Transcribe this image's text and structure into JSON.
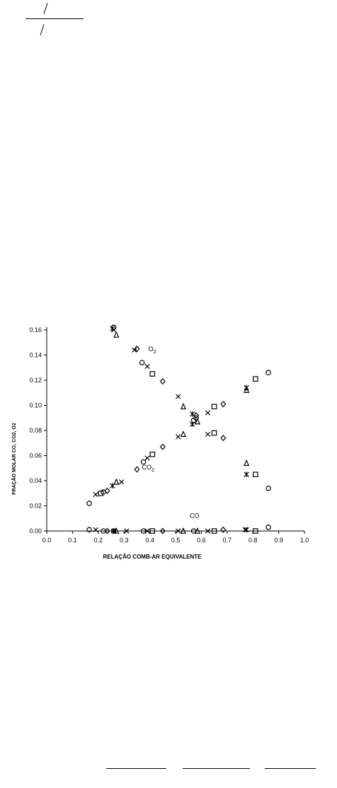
{
  "chart_data": {
    "type": "scatter",
    "xlabel": "RELAÇÃO COMB-AR EQUIVALENTE",
    "ylabel": "FRAÇÃO MOLAR CO, CO2, O2",
    "xlim": [
      0.0,
      1.0
    ],
    "ylim": [
      0.0,
      0.16
    ],
    "x_ticks": [
      "0.0",
      "0.1",
      "0.2",
      "0.3",
      "0.4",
      "0.5",
      "0.6",
      "0.7",
      "0.8",
      "0.9",
      "1.0"
    ],
    "y_ticks": [
      "0.00",
      "0.02",
      "0.04",
      "0.06",
      "0.08",
      "0.10",
      "0.12",
      "0.14",
      "0.16"
    ],
    "annotations": [
      {
        "text": "O",
        "sub": "2",
        "x": 0.395,
        "y": 0.143
      },
      {
        "text": "CO",
        "sub": "2",
        "x": 0.37,
        "y": 0.049
      },
      {
        "text": "CO",
        "sub": "",
        "x": 0.555,
        "y": 0.0105
      }
    ],
    "series": [
      {
        "marker": "circle",
        "points": [
          [
            0.165,
            0.022
          ],
          [
            0.22,
            0.031
          ],
          [
            0.26,
            0.162
          ],
          [
            0.37,
            0.134
          ],
          [
            0.375,
            0.055
          ],
          [
            0.57,
            0.088
          ],
          [
            0.58,
            0.09
          ],
          [
            0.86,
            0.126
          ],
          [
            0.165,
            0.001
          ],
          [
            0.22,
            0.0
          ],
          [
            0.26,
            0.0
          ],
          [
            0.375,
            0.0
          ],
          [
            0.57,
            0.0
          ],
          [
            0.86,
            0.003
          ],
          [
            0.86,
            0.034
          ]
        ]
      },
      {
        "marker": "x",
        "points": [
          [
            0.19,
            0.029
          ],
          [
            0.26,
            0.16
          ],
          [
            0.29,
            0.039
          ],
          [
            0.34,
            0.144
          ],
          [
            0.39,
            0.131
          ],
          [
            0.39,
            0.058
          ],
          [
            0.51,
            0.107
          ],
          [
            0.51,
            0.075
          ],
          [
            0.625,
            0.094
          ],
          [
            0.625,
            0.077
          ],
          [
            0.19,
            0.001
          ],
          [
            0.31,
            0.0
          ],
          [
            0.39,
            0.0
          ],
          [
            0.51,
            0.0
          ],
          [
            0.625,
            0.0
          ],
          [
            0.77,
            0.001
          ]
        ]
      },
      {
        "marker": "asterisk",
        "points": [
          [
            0.255,
            0.036
          ],
          [
            0.255,
            0.161
          ],
          [
            0.565,
            0.093
          ],
          [
            0.565,
            0.085
          ],
          [
            0.775,
            0.045
          ],
          [
            0.775,
            0.114
          ],
          [
            0.26,
            0.0
          ],
          [
            0.775,
            0.001
          ]
        ]
      },
      {
        "marker": "triangle",
        "points": [
          [
            0.27,
            0.039
          ],
          [
            0.27,
            0.156
          ],
          [
            0.53,
            0.099
          ],
          [
            0.53,
            0.077
          ],
          [
            0.585,
            0.087
          ],
          [
            0.775,
            0.054
          ],
          [
            0.775,
            0.112
          ],
          [
            0.27,
            0.0
          ],
          [
            0.53,
            0.0
          ],
          [
            0.585,
            0.0
          ]
        ]
      },
      {
        "marker": "square",
        "points": [
          [
            0.21,
            0.03
          ],
          [
            0.41,
            0.125
          ],
          [
            0.41,
            0.061
          ],
          [
            0.65,
            0.099
          ],
          [
            0.65,
            0.078
          ],
          [
            0.81,
            0.121
          ],
          [
            0.81,
            0.045
          ],
          [
            0.41,
            0.0
          ],
          [
            0.65,
            0.0
          ],
          [
            0.81,
            0.0
          ]
        ]
      },
      {
        "marker": "diamond",
        "points": [
          [
            0.235,
            0.032
          ],
          [
            0.35,
            0.145
          ],
          [
            0.35,
            0.049
          ],
          [
            0.45,
            0.119
          ],
          [
            0.45,
            0.067
          ],
          [
            0.58,
            0.092
          ],
          [
            0.685,
            0.101
          ],
          [
            0.685,
            0.074
          ],
          [
            0.235,
            0.0
          ],
          [
            0.45,
            0.0
          ],
          [
            0.685,
            0.001
          ]
        ]
      }
    ]
  }
}
